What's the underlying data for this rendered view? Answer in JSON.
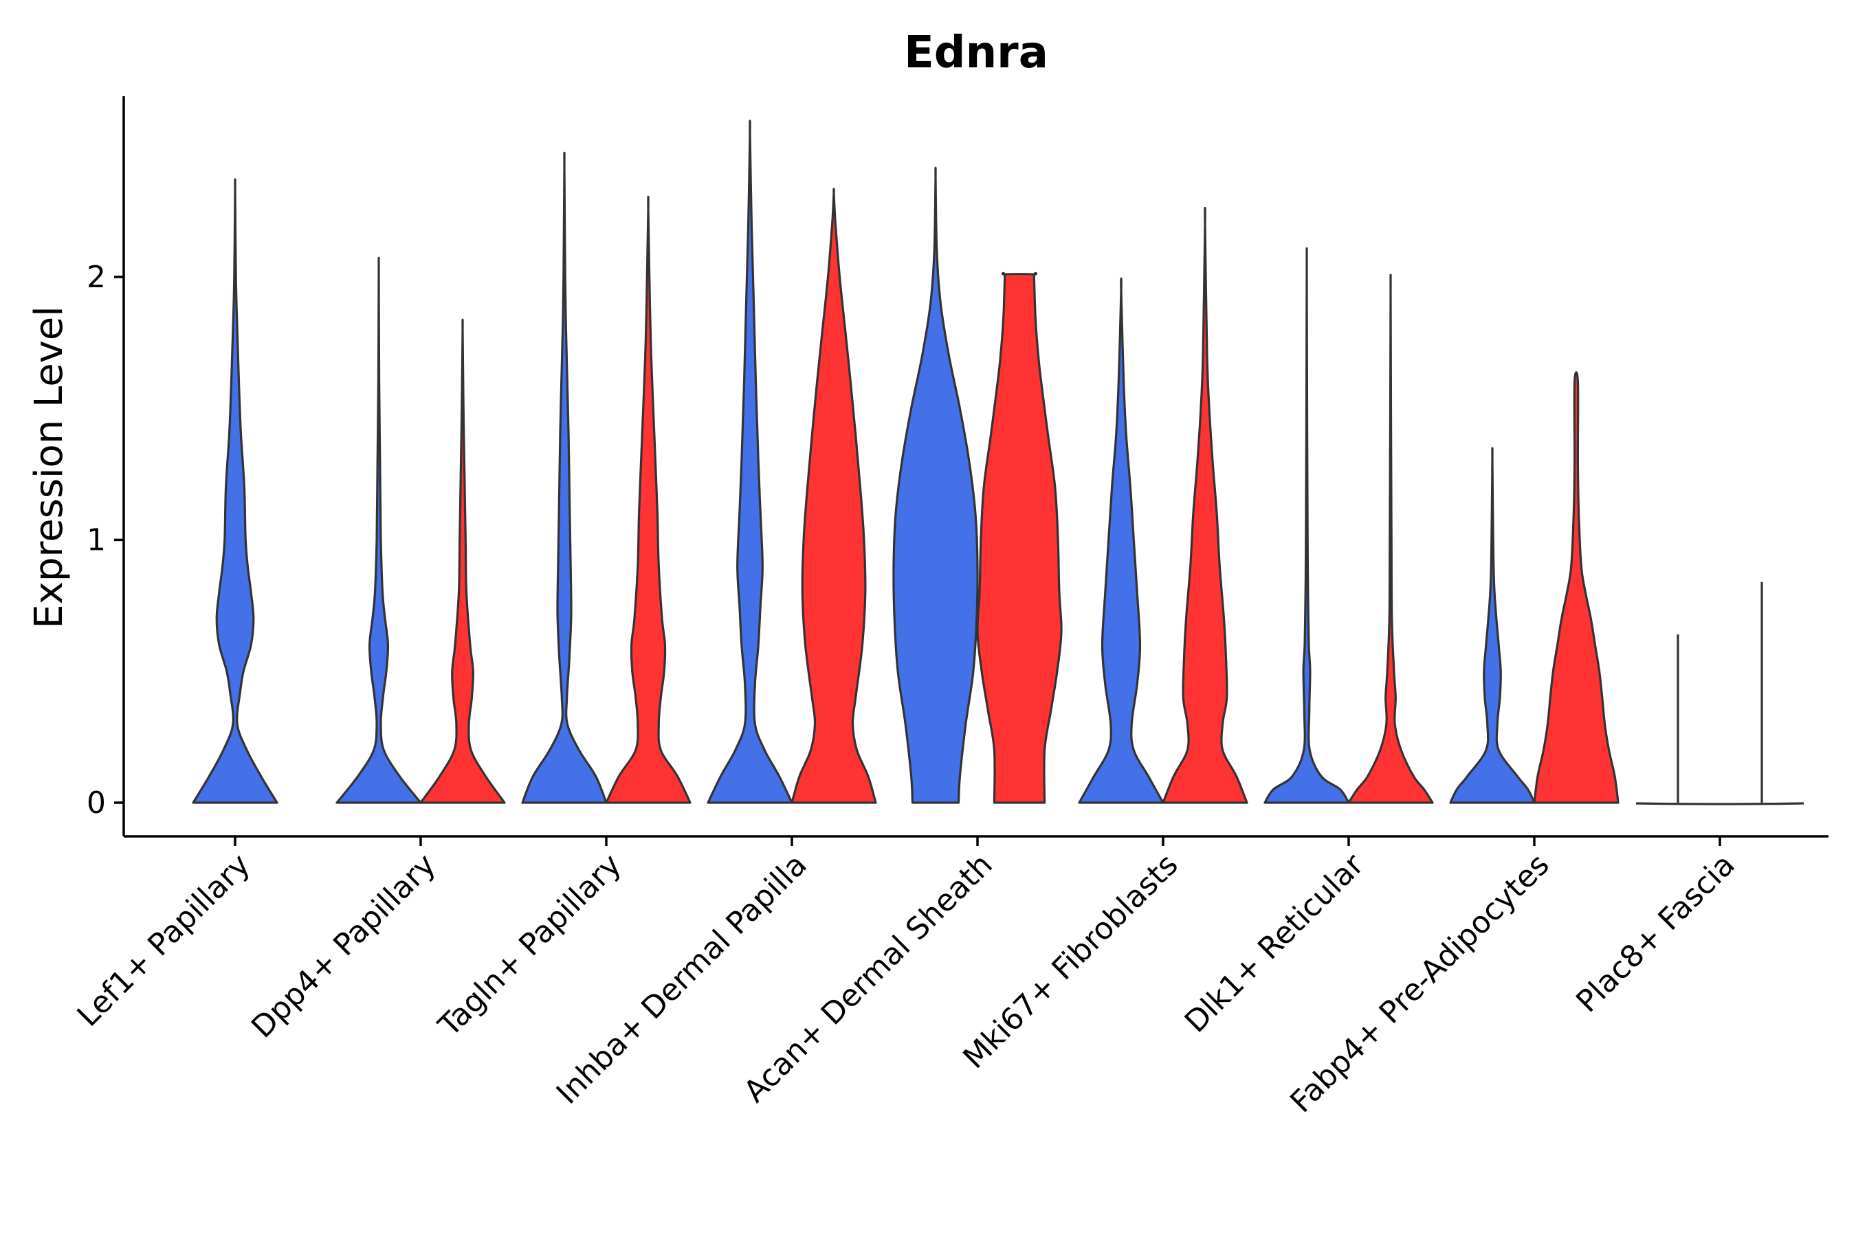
{
  "chart_data": {
    "type": "violin",
    "title": "Ednra",
    "xlabel": "",
    "ylabel": "Expression Level",
    "ylim": [
      -0.13,
      2.7
    ],
    "yticks": [
      0,
      1,
      2
    ],
    "grid": false,
    "legend": "none",
    "colors": {
      "group_a": "#4470E8",
      "group_b": "#FF3333",
      "outline": "#333333"
    },
    "categories": [
      "Lef1+ Papillary",
      "Dpp4+ Papillary",
      "Tagln+ Papillary",
      "Inhba+ Dermal Papilla",
      "Acan+ Dermal Sheath",
      "Mki67+ Fibroblasts",
      "Dlk1+ Reticular",
      "Fabp4+ Pre-Adipocytes",
      "Plac8+ Fascia"
    ],
    "violins": [
      {
        "category": "Lef1+ Papillary",
        "group": "a",
        "max": 2.33,
        "profile": [
          [
            0,
            1.0
          ],
          [
            0.1,
            0.62
          ],
          [
            0.2,
            0.28
          ],
          [
            0.3,
            0.05
          ],
          [
            0.42,
            0.12
          ],
          [
            0.5,
            0.2
          ],
          [
            0.6,
            0.38
          ],
          [
            0.7,
            0.44
          ],
          [
            0.8,
            0.38
          ],
          [
            0.9,
            0.3
          ],
          [
            1.0,
            0.25
          ],
          [
            1.2,
            0.22
          ],
          [
            1.4,
            0.14
          ],
          [
            1.6,
            0.09
          ],
          [
            1.8,
            0.05
          ],
          [
            2.0,
            0.02
          ],
          [
            2.33,
            0.0
          ]
        ]
      },
      {
        "category": "Dpp4+ Papillary",
        "group": "a",
        "max": 2.02,
        "profile": [
          [
            0,
            1.0
          ],
          [
            0.1,
            0.5
          ],
          [
            0.2,
            0.12
          ],
          [
            0.3,
            0.05
          ],
          [
            0.4,
            0.1
          ],
          [
            0.5,
            0.18
          ],
          [
            0.6,
            0.22
          ],
          [
            0.7,
            0.15
          ],
          [
            0.8,
            0.09
          ],
          [
            1.0,
            0.05
          ],
          [
            1.3,
            0.03
          ],
          [
            1.6,
            0.01
          ],
          [
            2.02,
            0.0
          ]
        ]
      },
      {
        "category": "Dpp4+ Papillary",
        "group": "b",
        "max": 1.8,
        "profile": [
          [
            0,
            1.0
          ],
          [
            0.1,
            0.55
          ],
          [
            0.2,
            0.2
          ],
          [
            0.3,
            0.15
          ],
          [
            0.4,
            0.22
          ],
          [
            0.5,
            0.25
          ],
          [
            0.6,
            0.18
          ],
          [
            0.8,
            0.09
          ],
          [
            1.0,
            0.07
          ],
          [
            1.3,
            0.04
          ],
          [
            1.5,
            0.02
          ],
          [
            1.8,
            0.0
          ]
        ]
      },
      {
        "category": "Tagln+ Papillary",
        "group": "a",
        "max": 2.42,
        "profile": [
          [
            0,
            1.0
          ],
          [
            0.1,
            0.75
          ],
          [
            0.2,
            0.35
          ],
          [
            0.3,
            0.07
          ],
          [
            0.4,
            0.06
          ],
          [
            0.55,
            0.12
          ],
          [
            0.7,
            0.16
          ],
          [
            0.8,
            0.16
          ],
          [
            1.0,
            0.14
          ],
          [
            1.2,
            0.12
          ],
          [
            1.4,
            0.1
          ],
          [
            1.6,
            0.07
          ],
          [
            1.8,
            0.04
          ],
          [
            2.0,
            0.02
          ],
          [
            2.42,
            0.0
          ]
        ]
      },
      {
        "category": "Tagln+ Papillary",
        "group": "b",
        "max": 2.26,
        "profile": [
          [
            0,
            1.0
          ],
          [
            0.1,
            0.7
          ],
          [
            0.2,
            0.3
          ],
          [
            0.3,
            0.25
          ],
          [
            0.4,
            0.3
          ],
          [
            0.5,
            0.38
          ],
          [
            0.6,
            0.4
          ],
          [
            0.7,
            0.33
          ],
          [
            0.9,
            0.25
          ],
          [
            1.1,
            0.22
          ],
          [
            1.3,
            0.17
          ],
          [
            1.5,
            0.12
          ],
          [
            1.7,
            0.07
          ],
          [
            1.9,
            0.04
          ],
          [
            2.26,
            0.0
          ]
        ]
      },
      {
        "category": "Inhba+ Dermal Papilla",
        "group": "a",
        "max": 2.55,
        "profile": [
          [
            0,
            1.0
          ],
          [
            0.1,
            0.7
          ],
          [
            0.2,
            0.35
          ],
          [
            0.3,
            0.12
          ],
          [
            0.45,
            0.12
          ],
          [
            0.6,
            0.2
          ],
          [
            0.75,
            0.25
          ],
          [
            0.9,
            0.3
          ],
          [
            1.1,
            0.25
          ],
          [
            1.3,
            0.2
          ],
          [
            1.6,
            0.14
          ],
          [
            1.9,
            0.09
          ],
          [
            2.2,
            0.04
          ],
          [
            2.55,
            0.0
          ]
        ]
      },
      {
        "category": "Inhba+ Dermal Papilla",
        "group": "b",
        "max": 2.32,
        "profile": [
          [
            0,
            1.0
          ],
          [
            0.1,
            0.82
          ],
          [
            0.2,
            0.55
          ],
          [
            0.3,
            0.45
          ],
          [
            0.4,
            0.52
          ],
          [
            0.6,
            0.68
          ],
          [
            0.8,
            0.75
          ],
          [
            1.0,
            0.72
          ],
          [
            1.2,
            0.63
          ],
          [
            1.4,
            0.52
          ],
          [
            1.6,
            0.4
          ],
          [
            1.8,
            0.27
          ],
          [
            2.0,
            0.14
          ],
          [
            2.2,
            0.04
          ],
          [
            2.32,
            0.0
          ]
        ]
      },
      {
        "category": "Acan+ Dermal Sheath",
        "group": "a",
        "max": 2.38,
        "profile": [
          [
            0,
            0.55
          ],
          [
            0.1,
            0.58
          ],
          [
            0.3,
            0.72
          ],
          [
            0.5,
            0.9
          ],
          [
            0.7,
            0.98
          ],
          [
            0.9,
            1.0
          ],
          [
            1.1,
            0.95
          ],
          [
            1.3,
            0.8
          ],
          [
            1.5,
            0.58
          ],
          [
            1.7,
            0.32
          ],
          [
            1.9,
            0.12
          ],
          [
            2.1,
            0.03
          ],
          [
            2.38,
            0.0
          ]
        ]
      },
      {
        "category": "Acan+ Dermal Sheath",
        "group": "b",
        "max": 2.01,
        "profile": [
          [
            0,
            0.6
          ],
          [
            0.2,
            0.6
          ],
          [
            0.35,
            0.75
          ],
          [
            0.5,
            0.9
          ],
          [
            0.65,
            1.0
          ],
          [
            0.8,
            0.95
          ],
          [
            1.0,
            0.92
          ],
          [
            1.2,
            0.85
          ],
          [
            1.4,
            0.68
          ],
          [
            1.6,
            0.52
          ],
          [
            1.7,
            0.45
          ],
          [
            1.85,
            0.38
          ],
          [
            2.0,
            0.35
          ],
          [
            2.01,
            0.35
          ]
        ]
      },
      {
        "category": "Mki67+ Fibroblasts",
        "group": "a",
        "max": 1.95,
        "profile": [
          [
            0,
            1.0
          ],
          [
            0.1,
            0.65
          ],
          [
            0.2,
            0.3
          ],
          [
            0.3,
            0.25
          ],
          [
            0.45,
            0.38
          ],
          [
            0.6,
            0.45
          ],
          [
            0.8,
            0.38
          ],
          [
            1.0,
            0.3
          ],
          [
            1.2,
            0.22
          ],
          [
            1.4,
            0.12
          ],
          [
            1.6,
            0.06
          ],
          [
            1.95,
            0.0
          ]
        ]
      },
      {
        "category": "Mki67+ Fibroblasts",
        "group": "b",
        "max": 2.2,
        "profile": [
          [
            0,
            1.0
          ],
          [
            0.1,
            0.75
          ],
          [
            0.2,
            0.42
          ],
          [
            0.3,
            0.42
          ],
          [
            0.4,
            0.52
          ],
          [
            0.55,
            0.5
          ],
          [
            0.7,
            0.45
          ],
          [
            0.9,
            0.35
          ],
          [
            1.1,
            0.28
          ],
          [
            1.3,
            0.18
          ],
          [
            1.5,
            0.1
          ],
          [
            1.7,
            0.05
          ],
          [
            2.2,
            0.0
          ]
        ]
      },
      {
        "category": "Dlk1+ Reticular",
        "group": "a",
        "max": 2.03,
        "profile": [
          [
            0,
            1.0
          ],
          [
            0.05,
            0.8
          ],
          [
            0.1,
            0.35
          ],
          [
            0.2,
            0.07
          ],
          [
            0.35,
            0.06
          ],
          [
            0.5,
            0.08
          ],
          [
            0.6,
            0.05
          ],
          [
            0.8,
            0.03
          ],
          [
            1.0,
            0.02
          ],
          [
            1.4,
            0.01
          ],
          [
            2.03,
            0.0
          ]
        ]
      },
      {
        "category": "Dlk1+ Reticular",
        "group": "b",
        "max": 1.94,
        "profile": [
          [
            0,
            1.0
          ],
          [
            0.05,
            0.8
          ],
          [
            0.1,
            0.55
          ],
          [
            0.2,
            0.25
          ],
          [
            0.3,
            0.1
          ],
          [
            0.4,
            0.12
          ],
          [
            0.5,
            0.08
          ],
          [
            0.7,
            0.03
          ],
          [
            1.0,
            0.02
          ],
          [
            1.4,
            0.01
          ],
          [
            1.94,
            0.0
          ]
        ]
      },
      {
        "category": "Fabp4+ Pre-Adipocytes",
        "group": "a",
        "max": 1.31,
        "profile": [
          [
            0,
            1.0
          ],
          [
            0.05,
            0.85
          ],
          [
            0.1,
            0.6
          ],
          [
            0.2,
            0.15
          ],
          [
            0.3,
            0.12
          ],
          [
            0.4,
            0.18
          ],
          [
            0.5,
            0.2
          ],
          [
            0.6,
            0.15
          ],
          [
            0.8,
            0.05
          ],
          [
            1.0,
            0.02
          ],
          [
            1.31,
            0.0
          ]
        ]
      },
      {
        "category": "Fabp4+ Pre-Adipocytes",
        "group": "b",
        "max": 1.6,
        "profile": [
          [
            0,
            1.0
          ],
          [
            0.1,
            0.92
          ],
          [
            0.2,
            0.78
          ],
          [
            0.3,
            0.68
          ],
          [
            0.4,
            0.62
          ],
          [
            0.5,
            0.55
          ],
          [
            0.6,
            0.45
          ],
          [
            0.7,
            0.35
          ],
          [
            0.8,
            0.22
          ],
          [
            0.9,
            0.12
          ],
          [
            1.1,
            0.06
          ],
          [
            1.3,
            0.04
          ],
          [
            1.6,
            0.04
          ]
        ]
      },
      {
        "category": "Plac8+ Fascia",
        "group": "a",
        "max": 0.64,
        "profile": [
          [
            0,
            0.0
          ],
          [
            0.64,
            0.0
          ]
        ]
      },
      {
        "category": "Plac8+ Fascia",
        "group": "b",
        "max": 0.84,
        "profile": [
          [
            0,
            0.0
          ],
          [
            0.84,
            0.0
          ]
        ]
      }
    ]
  }
}
